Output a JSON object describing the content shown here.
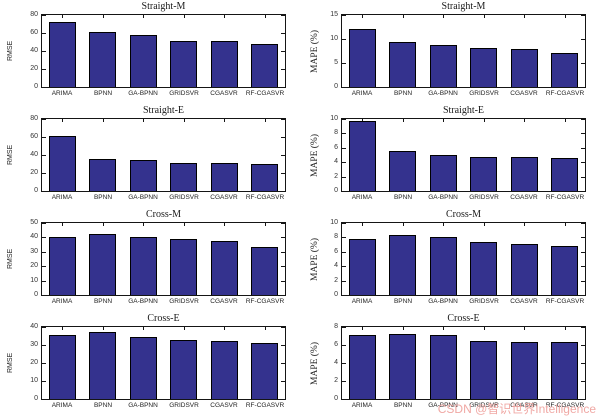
{
  "page": {
    "background": "#ffffff"
  },
  "watermark": {
    "text": "CSDN @智识世界Intelligence",
    "color": "#f0a8a4"
  },
  "style": {
    "bar_color": "#34328e",
    "bar_edge_color": "#000000",
    "axis_color": "#151515",
    "tick_label_color": "#333333",
    "title_color": "#1a1a1a"
  },
  "chart_data": [
    {
      "type": "bar",
      "title": "Straight-M",
      "ylabel": "RMSE",
      "ylim": [
        0,
        80
      ],
      "yticks": [
        0,
        20,
        40,
        60,
        80
      ],
      "grid": false,
      "legend": false,
      "categories": [
        "ARIMA",
        "BPNN",
        "GA-BPNN",
        "GRIDSVR",
        "CGASVR",
        "RF-CGASVR"
      ],
      "values": [
        72,
        61,
        58,
        51,
        51,
        48
      ]
    },
    {
      "type": "bar",
      "title": "Straight-M",
      "ylabel": "MAPE (%)",
      "ylim": [
        0,
        15
      ],
      "yticks": [
        0,
        5,
        10,
        15
      ],
      "grid": false,
      "legend": false,
      "categories": [
        "ARIMA",
        "BPNN",
        "GA-BPNN",
        "GRIDSVR",
        "CGASVR",
        "RF-CGASVR"
      ],
      "values": [
        12,
        9.3,
        8.8,
        8.1,
        7.9,
        7.1
      ]
    },
    {
      "type": "bar",
      "title": "Straight-E",
      "ylabel": "RMSE",
      "ylim": [
        0,
        80
      ],
      "yticks": [
        0,
        20,
        40,
        60,
        80
      ],
      "grid": false,
      "legend": false,
      "categories": [
        "ARIMA",
        "BPNN",
        "GA-BPNN",
        "GRIDSVR",
        "CGASVR",
        "RF-CGASVR"
      ],
      "values": [
        61,
        36,
        34,
        31,
        31,
        30
      ]
    },
    {
      "type": "bar",
      "title": "Straight-E",
      "ylabel": "MAPE (%)",
      "ylim": [
        0,
        10
      ],
      "yticks": [
        0,
        2,
        4,
        6,
        8,
        10
      ],
      "grid": false,
      "legend": false,
      "categories": [
        "ARIMA",
        "BPNN",
        "GA-BPNN",
        "GRIDSVR",
        "CGASVR",
        "RF-CGASVR"
      ],
      "values": [
        9.7,
        5.6,
        5.0,
        4.7,
        4.7,
        4.6
      ]
    },
    {
      "type": "bar",
      "title": "Cross-M",
      "ylabel": "RMSE",
      "ylim": [
        0,
        50
      ],
      "yticks": [
        0,
        10,
        20,
        30,
        40,
        50
      ],
      "grid": false,
      "legend": false,
      "categories": [
        "ARIMA",
        "BPNN",
        "GA-BPNN",
        "GRIDSVR",
        "CGASVR",
        "RF-CGASVR"
      ],
      "values": [
        40.5,
        42.5,
        40,
        39,
        37.5,
        33
      ]
    },
    {
      "type": "bar",
      "title": "Cross-M",
      "ylabel": "MAPE (%)",
      "ylim": [
        0,
        10
      ],
      "yticks": [
        0,
        2,
        4,
        6,
        8,
        10
      ],
      "grid": false,
      "legend": false,
      "categories": [
        "ARIMA",
        "BPNN",
        "GA-BPNN",
        "GRIDSVR",
        "CGASVR",
        "RF-CGASVR"
      ],
      "values": [
        7.8,
        8.4,
        8.1,
        7.3,
        7.1,
        6.8
      ]
    },
    {
      "type": "bar",
      "title": "Cross-E",
      "ylabel": "RMSE",
      "ylim": [
        0,
        40
      ],
      "yticks": [
        0,
        10,
        20,
        30,
        40
      ],
      "grid": false,
      "legend": false,
      "categories": [
        "ARIMA",
        "BPNN",
        "GA-BPNN",
        "GRIDSVR",
        "CGASVR",
        "RF-CGASVR"
      ],
      "values": [
        35.8,
        37.2,
        34.7,
        33,
        32,
        31
      ]
    },
    {
      "type": "bar",
      "title": "Cross-E",
      "ylabel": "MAPE (%)",
      "ylim": [
        0,
        8
      ],
      "yticks": [
        0,
        2,
        4,
        6,
        8
      ],
      "grid": false,
      "legend": false,
      "categories": [
        "ARIMA",
        "BPNN",
        "GA-BPNN",
        "GRIDSVR",
        "CGASVR",
        "RF-CGASVR"
      ],
      "values": [
        7.1,
        7.2,
        7.1,
        6.4,
        6.3,
        6.3
      ]
    }
  ]
}
